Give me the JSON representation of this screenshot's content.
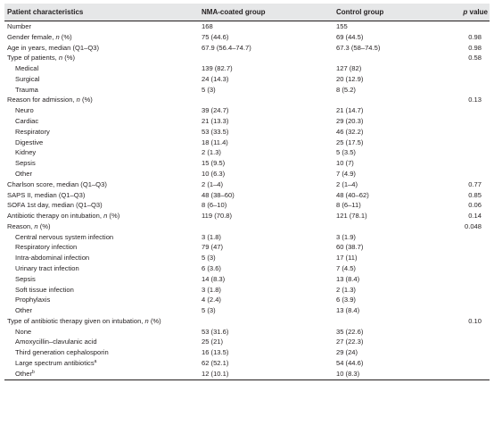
{
  "headers": {
    "characteristic": "Patient characteristics",
    "nma": "NMA-coated group",
    "control": "Control group",
    "p_italic": "p",
    "p_rest": " value"
  },
  "rows": [
    {
      "label": "Number",
      "nma": "168",
      "control": "155",
      "p": ""
    },
    {
      "label": "Gender female, ",
      "italic": "n",
      "suffix": " (%)",
      "nma": "75 (44.6)",
      "control": "69 (44.5)",
      "p": "0.98"
    },
    {
      "label": "Age in years, median (Q1–Q3)",
      "nma": "67.9 (56.4–74.7)",
      "control": "67.3 (58–74.5)",
      "p": "0.98"
    },
    {
      "label": "Type of patients, ",
      "italic": "n",
      "suffix": " (%)",
      "nma": "",
      "control": "",
      "p": "0.58"
    },
    {
      "label": "Medical",
      "indent": true,
      "nma": "139 (82.7)",
      "control": "127 (82)",
      "p": ""
    },
    {
      "label": "Surgical",
      "indent": true,
      "nma": "24 (14.3)",
      "control": "20 (12.9)",
      "p": ""
    },
    {
      "label": "Trauma",
      "indent": true,
      "nma": "5 (3)",
      "control": "8 (5.2)",
      "p": ""
    },
    {
      "label": "Reason for admission, ",
      "italic": "n",
      "suffix": " (%)",
      "nma": "",
      "control": "",
      "p": "0.13"
    },
    {
      "label": "Neuro",
      "indent": true,
      "nma": "39 (24.7)",
      "control": "21 (14.7)",
      "p": ""
    },
    {
      "label": "Cardiac",
      "indent": true,
      "nma": "21 (13.3)",
      "control": "29 (20.3)",
      "p": ""
    },
    {
      "label": "Respiratory",
      "indent": true,
      "nma": "53 (33.5)",
      "control": "46 (32.2)",
      "p": ""
    },
    {
      "label": "Digestive",
      "indent": true,
      "nma": "18 (11.4)",
      "control": "25 (17.5)",
      "p": ""
    },
    {
      "label": "Kidney",
      "indent": true,
      "nma": "2 (1.3)",
      "control": "5 (3.5)",
      "p": ""
    },
    {
      "label": "Sepsis",
      "indent": true,
      "nma": "15 (9.5)",
      "control": "10 (7)",
      "p": ""
    },
    {
      "label": "Other",
      "indent": true,
      "nma": "10 (6.3)",
      "control": "7 (4.9)",
      "p": ""
    },
    {
      "label": "Charlson score, median (Q1–Q3)",
      "nma": "2 (1–4)",
      "control": "2 (1–4)",
      "p": "0.77"
    },
    {
      "label": "SAPS II, median (Q1–Q3)",
      "nma": "48 (38–60)",
      "control": "48 (40–62)",
      "p": "0.85"
    },
    {
      "label": "SOFA 1st day, median (Q1–Q3)",
      "nma": "8 (6–10)",
      "control": "8 (6–11)",
      "p": "0.06"
    },
    {
      "label": "Antibiotic therapy on intubation, ",
      "italic": "n",
      "suffix": " (%)",
      "nma": "119 (70.8)",
      "control": "121 (78.1)",
      "p": "0.14"
    },
    {
      "label": "Reason, ",
      "italic": "n",
      "suffix": " (%)",
      "nma": "",
      "control": "",
      "p": "0.048"
    },
    {
      "label": "Central nervous system infection",
      "indent": true,
      "nma": "3 (1.8)",
      "control": "3 (1.9)",
      "p": ""
    },
    {
      "label": "Respiratory infection",
      "indent": true,
      "nma": "79 (47)",
      "control": "60 (38.7)",
      "p": ""
    },
    {
      "label": "Intra-abdominal infection",
      "indent": true,
      "nma": "5 (3)",
      "control": "17 (11)",
      "p": ""
    },
    {
      "label": "Urinary tract infection",
      "indent": true,
      "nma": "6 (3.6)",
      "control": "7 (4.5)",
      "p": ""
    },
    {
      "label": "Sepsis",
      "indent": true,
      "nma": "14 (8.3)",
      "control": "13 (8.4)",
      "p": ""
    },
    {
      "label": "Soft tissue infection",
      "indent": true,
      "nma": "3 (1.8)",
      "control": "2 (1.3)",
      "p": ""
    },
    {
      "label": "Prophylaxis",
      "indent": true,
      "nma": "4 (2.4)",
      "control": "6 (3.9)",
      "p": ""
    },
    {
      "label": "Other",
      "indent": true,
      "nma": "5 (3)",
      "control": "13 (8.4)",
      "p": ""
    },
    {
      "label": "Type of antibiotic therapy given on intubation, ",
      "italic": "n",
      "suffix": " (%)",
      "nma": "",
      "control": "",
      "p": "0.10"
    },
    {
      "label": "None",
      "indent": true,
      "nma": "53 (31.6)",
      "control": "35 (22.6)",
      "p": ""
    },
    {
      "label": "Amoxycillin–clavulanic acid",
      "indent": true,
      "nma": "25 (21)",
      "control": "27 (22.3)",
      "p": ""
    },
    {
      "label": "Third generation cephalosporin",
      "indent": true,
      "nma": "16 (13.5)",
      "control": "29 (24)",
      "p": ""
    },
    {
      "label": "Large spectrum antibiotics",
      "sup": "a",
      "indent": true,
      "nma": "62 (52.1)",
      "control": "54 (44.6)",
      "p": ""
    },
    {
      "label": "Other",
      "sup": "b",
      "indent": true,
      "nma": "12 (10.1)",
      "control": "10 (8.3)",
      "p": ""
    }
  ]
}
